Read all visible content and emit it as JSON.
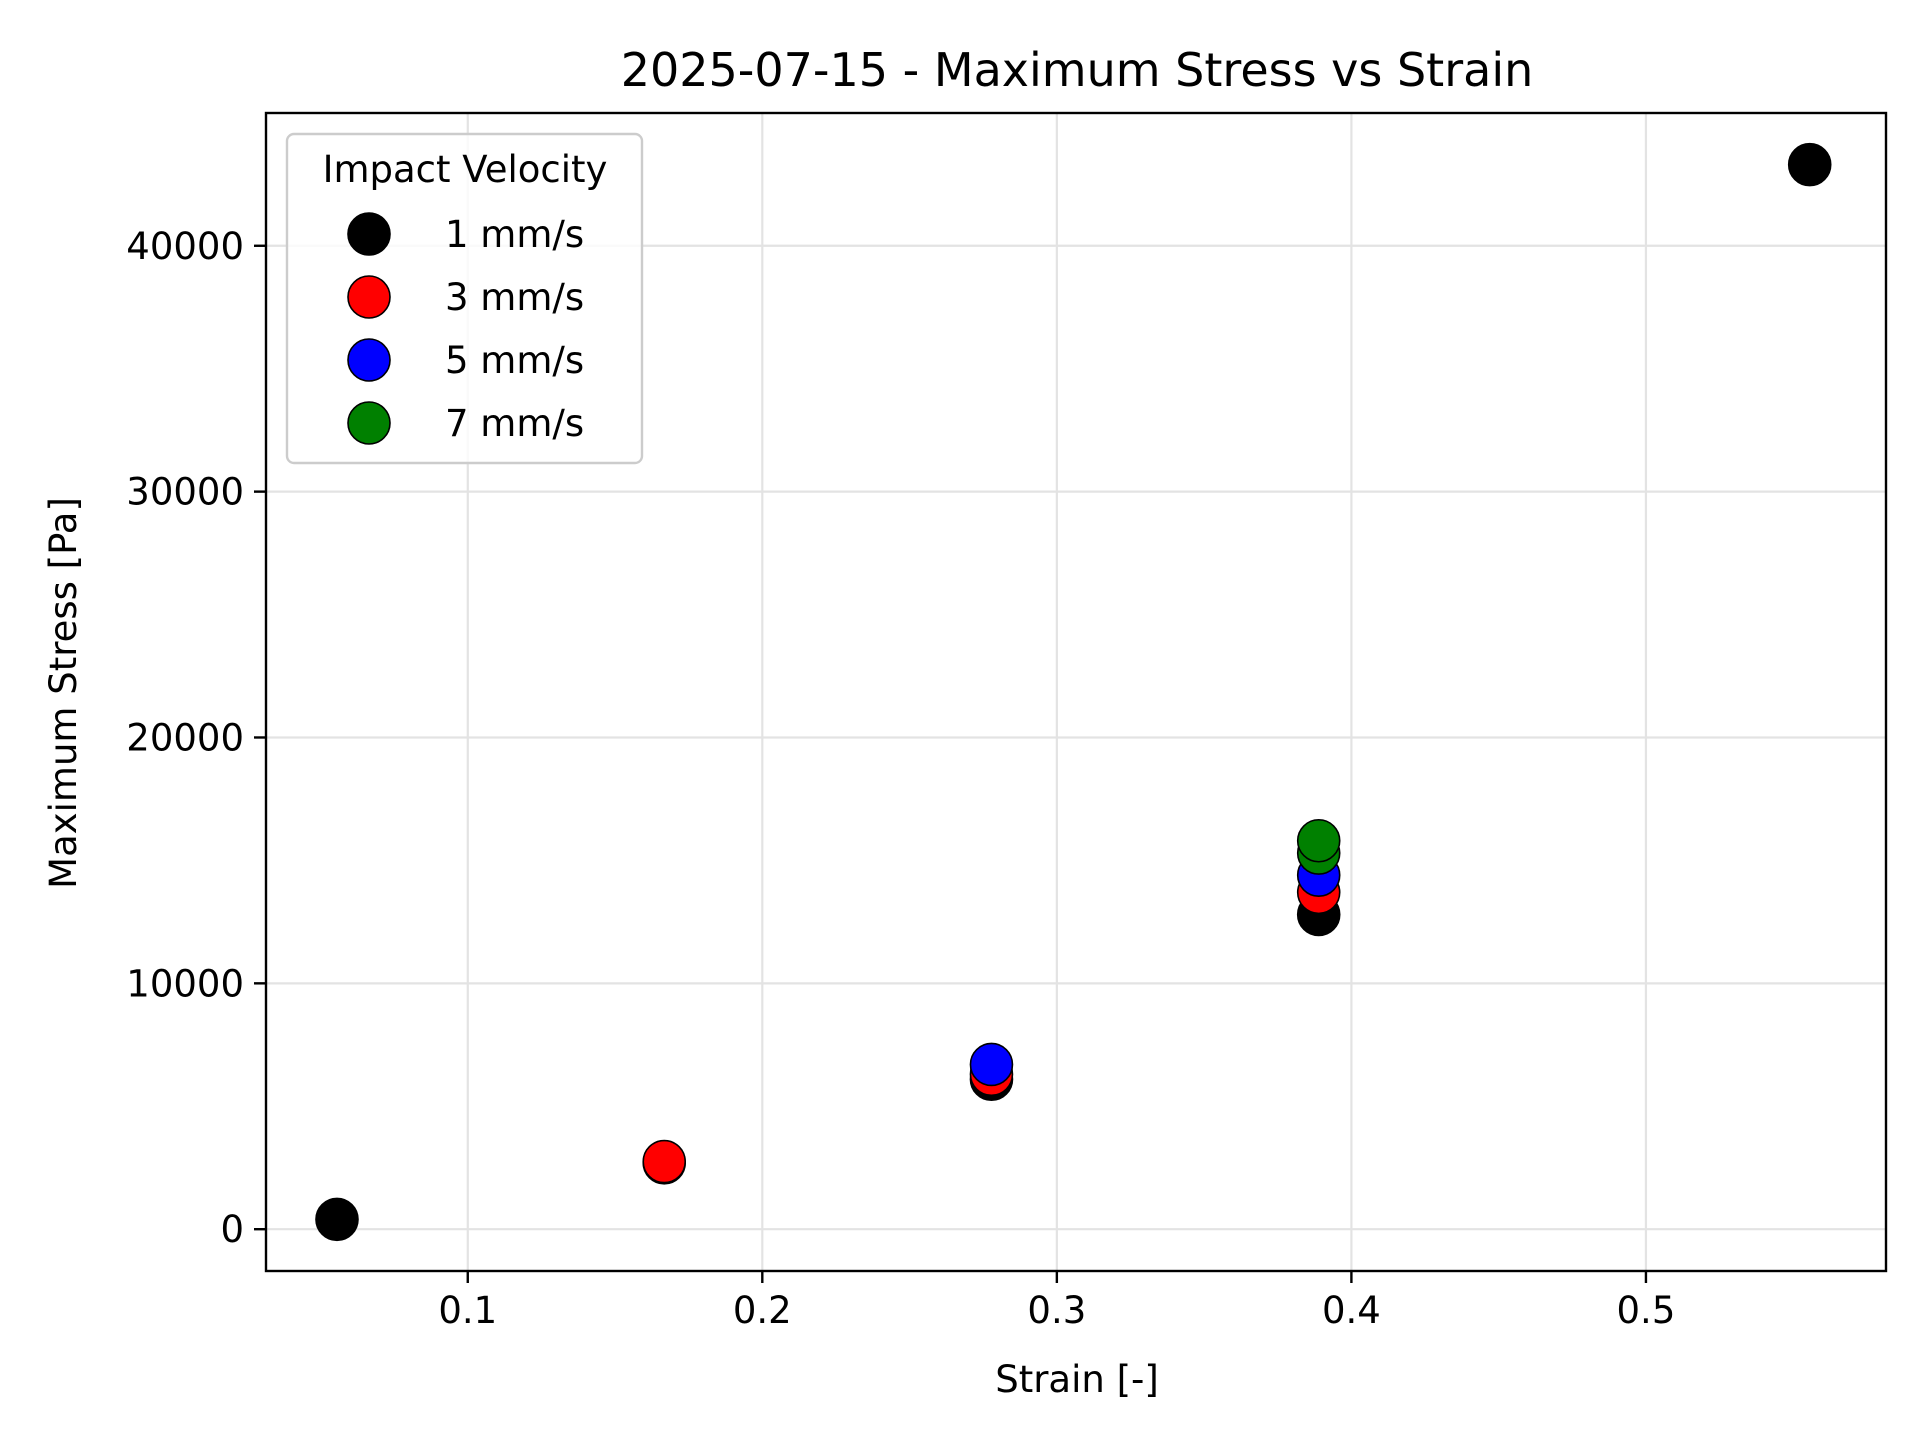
{
  "chart_data": {
    "type": "scatter",
    "title": "2025-07-15 - Maximum Stress vs Strain",
    "xlabel": "Strain [-]",
    "ylabel": "Maximum Stress [Pa]",
    "xlim": [
      0.0315,
      0.5815
    ],
    "ylim": [
      -1700,
      45400
    ],
    "x_ticks": [
      0.1,
      0.2,
      0.3,
      0.4,
      0.5
    ],
    "x_tick_labels": [
      "0.1",
      "0.2",
      "0.3",
      "0.4",
      "0.5"
    ],
    "y_ticks": [
      0,
      10000,
      20000,
      30000,
      40000
    ],
    "y_tick_labels": [
      "0",
      "10000",
      "20000",
      "30000",
      "40000"
    ],
    "grid": true,
    "legend": {
      "title": "Impact Velocity",
      "position": "top-left"
    },
    "series": [
      {
        "name": "1 mm/s",
        "color": "#000000",
        "points": [
          {
            "x": 0.0556,
            "y": 400
          },
          {
            "x": 0.1667,
            "y": 2700
          },
          {
            "x": 0.2778,
            "y": 6100
          },
          {
            "x": 0.3889,
            "y": 12800
          },
          {
            "x": 0.5556,
            "y": 43300
          }
        ]
      },
      {
        "name": "3 mm/s",
        "color": "#ff0000",
        "points": [
          {
            "x": 0.1667,
            "y": 2750
          },
          {
            "x": 0.2778,
            "y": 6300
          },
          {
            "x": 0.3889,
            "y": 13700
          }
        ]
      },
      {
        "name": "5 mm/s",
        "color": "#0000ff",
        "points": [
          {
            "x": 0.2778,
            "y": 6700
          },
          {
            "x": 0.3889,
            "y": 14400
          }
        ]
      },
      {
        "name": "7 mm/s",
        "color": "#008000",
        "points": [
          {
            "x": 0.3889,
            "y": 15300
          },
          {
            "x": 0.3889,
            "y": 15800
          }
        ]
      }
    ]
  }
}
